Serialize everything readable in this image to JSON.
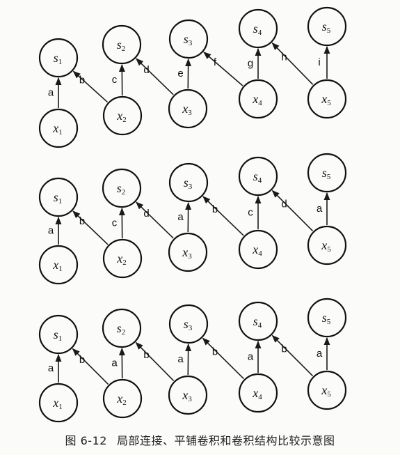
{
  "caption": {
    "number": "图 6-12",
    "text": "局部连接、平铺卷积和卷积结构比较示意图"
  },
  "node_labels": {
    "hidden": [
      "s1",
      "s2",
      "s3",
      "s4",
      "s5"
    ],
    "input": [
      "x1",
      "x2",
      "x3",
      "x4",
      "x5"
    ]
  },
  "panels": [
    {
      "id": "local-connection",
      "edges": [
        {
          "from": 1,
          "to": 1,
          "label": "a"
        },
        {
          "from": 2,
          "to": 1,
          "label": "b"
        },
        {
          "from": 2,
          "to": 2,
          "label": "c"
        },
        {
          "from": 3,
          "to": 2,
          "label": "d"
        },
        {
          "from": 3,
          "to": 3,
          "label": "e"
        },
        {
          "from": 4,
          "to": 3,
          "label": "f"
        },
        {
          "from": 4,
          "to": 4,
          "label": "g"
        },
        {
          "from": 5,
          "to": 4,
          "label": "h"
        },
        {
          "from": 5,
          "to": 5,
          "label": "i"
        }
      ]
    },
    {
      "id": "tiled-convolution",
      "edges": [
        {
          "from": 1,
          "to": 1,
          "label": "a"
        },
        {
          "from": 2,
          "to": 1,
          "label": "b"
        },
        {
          "from": 2,
          "to": 2,
          "label": "c"
        },
        {
          "from": 3,
          "to": 2,
          "label": "d"
        },
        {
          "from": 3,
          "to": 3,
          "label": "a"
        },
        {
          "from": 4,
          "to": 3,
          "label": "b"
        },
        {
          "from": 4,
          "to": 4,
          "label": "c"
        },
        {
          "from": 5,
          "to": 4,
          "label": "d"
        },
        {
          "from": 5,
          "to": 5,
          "label": "a"
        }
      ]
    },
    {
      "id": "convolution",
      "edges": [
        {
          "from": 1,
          "to": 1,
          "label": "a"
        },
        {
          "from": 2,
          "to": 1,
          "label": "b"
        },
        {
          "from": 2,
          "to": 2,
          "label": "a"
        },
        {
          "from": 3,
          "to": 2,
          "label": "b"
        },
        {
          "from": 3,
          "to": 3,
          "label": "a"
        },
        {
          "from": 4,
          "to": 3,
          "label": "b"
        },
        {
          "from": 4,
          "to": 4,
          "label": "a"
        },
        {
          "from": 5,
          "to": 4,
          "label": "b"
        },
        {
          "from": 5,
          "to": 5,
          "label": "a"
        }
      ]
    }
  ]
}
